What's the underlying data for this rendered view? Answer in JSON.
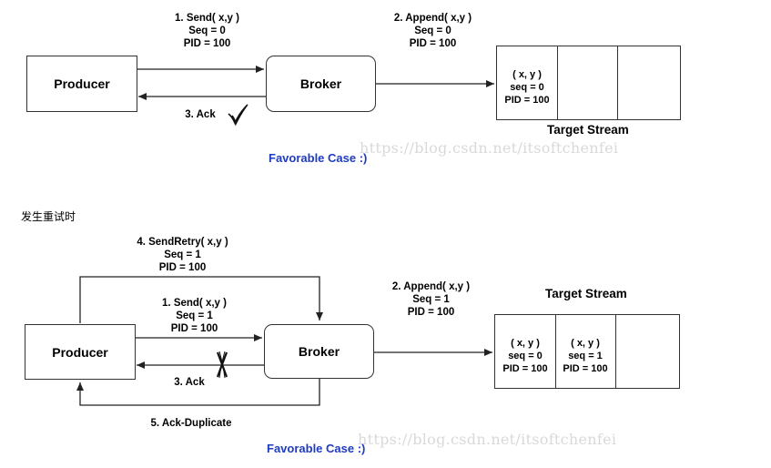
{
  "top": {
    "producer": "Producer",
    "broker": "Broker",
    "send_label": [
      "1. Send( x,y )",
      "Seq = 0",
      "PID = 100"
    ],
    "append_label": [
      "2. Append( x,y )",
      "Seq = 0",
      "PID = 100"
    ],
    "ack_label": "3. Ack",
    "ack_status_icon": "checkmark-icon",
    "stream_title": "Target Stream",
    "stream_cells": [
      [
        "( x, y )",
        "seq = 0",
        "PID = 100"
      ],
      [],
      []
    ],
    "favorable": "Favorable Case :)"
  },
  "section_heading": "发生重试时",
  "bottom": {
    "producer": "Producer",
    "broker": "Broker",
    "retry_label": [
      "4. SendRetry( x,y )",
      "Seq = 1",
      "PID = 100"
    ],
    "send_label": [
      "1. Send( x,y )",
      "Seq = 1",
      "PID = 100"
    ],
    "append_label": [
      "2. Append( x,y )",
      "Seq = 1",
      "PID = 100"
    ],
    "ack_label": "3. Ack",
    "ack_status_icon": "cross-icon",
    "dup_label": "5. Ack-Duplicate",
    "stream_title": "Target Stream",
    "stream_cells": [
      [
        "( x, y )",
        "seq = 0",
        "PID = 100"
      ],
      [
        "( x, y )",
        "seq = 1",
        "PID = 100"
      ],
      []
    ],
    "favorable": "Favorable Case :)"
  },
  "watermark": "https://blog.csdn.net/itsoftchenfei"
}
